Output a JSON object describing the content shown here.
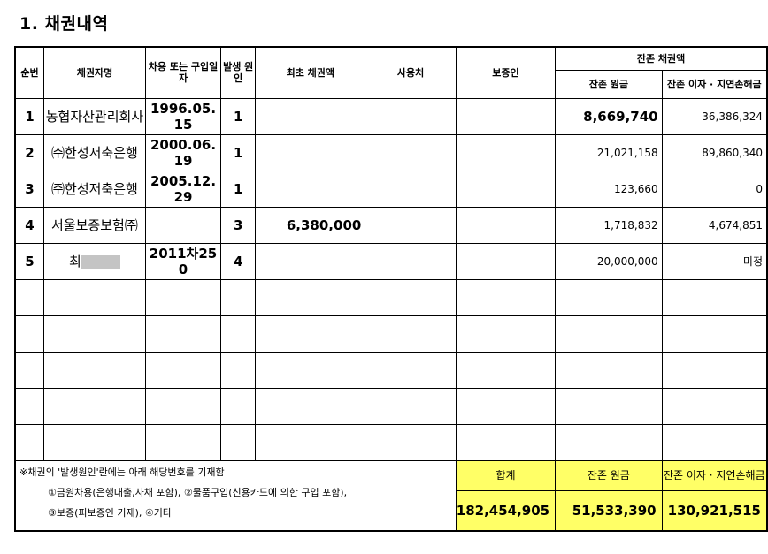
{
  "section_title": "1. 채권내역",
  "headers": {
    "index": "순번",
    "creditor": "채권자명",
    "date": "차용 또는 구입일자",
    "cause": "발생 원인",
    "initial": "최초 채권액",
    "use": "사용처",
    "guarantor": "보증인",
    "remaining_group": "잔존 채권액",
    "principal": "잔존 원금",
    "interest": "잔존 이자 · 지연손해금"
  },
  "rows": [
    {
      "index": "1",
      "creditor": "농협자산관리회사",
      "date": "1996.05.15",
      "cause": "1",
      "initial": "",
      "use": "",
      "guarantor": "",
      "principal": "8,669,740",
      "interest": "36,386,324"
    },
    {
      "index": "2",
      "creditor": "㈜한성저축은행",
      "date": "2000.06.19",
      "cause": "1",
      "initial": "",
      "use": "",
      "guarantor": "",
      "principal": "21,021,158",
      "interest": "89,860,340"
    },
    {
      "index": "3",
      "creditor": "㈜한성저축은행",
      "date": "2005.12.29",
      "cause": "1",
      "initial": "",
      "use": "",
      "guarantor": "",
      "principal": "123,660",
      "interest": "0"
    },
    {
      "index": "4",
      "creditor": "서울보증보험㈜",
      "date": "",
      "cause": "3",
      "initial": "6,380,000",
      "use": "",
      "guarantor": "",
      "principal": "1,718,832",
      "interest": "4,674,851"
    },
    {
      "index": "5",
      "creditor": "최",
      "date": "2011차250",
      "cause": "4",
      "initial": "",
      "use": "",
      "guarantor": "",
      "principal": "20,000,000",
      "interest": "미정"
    }
  ],
  "note": {
    "line1": "※채권의 '발생원인'란에는 아래 해당번호를 기재함",
    "line2": "①금원차용(은행대출,사채 포함), ②물품구입(신용카드에 의한 구입 포함),",
    "line3": "③보증(피보증인 기재), ④기타"
  },
  "totals": {
    "total_label": "합계",
    "principal_label": "잔존 원금",
    "interest_label": "잔존 이자 · 지연손해금",
    "total": "182,454,905",
    "principal": "51,533,390",
    "interest": "130,921,515"
  },
  "colors": {
    "highlight": "#ffff66",
    "border": "#000000"
  }
}
